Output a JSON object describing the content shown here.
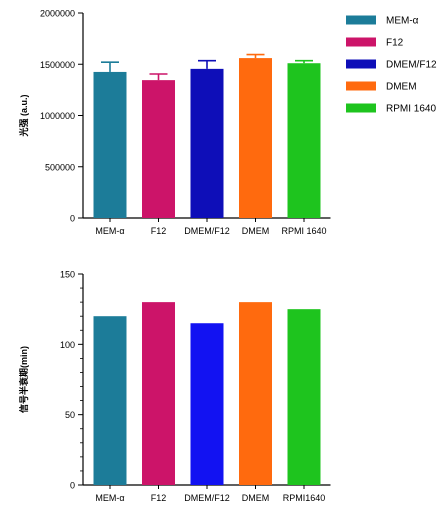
{
  "chart_data": [
    {
      "type": "bar",
      "categories": [
        "MEM-α",
        "F12",
        "DMEM/F12",
        "DMEM",
        "RPMI 1640"
      ],
      "values": [
        1425000,
        1345000,
        1455000,
        1560000,
        1510000
      ],
      "errors": [
        95000,
        60000,
        80000,
        35000,
        25000
      ],
      "colors": [
        "#1C7C99",
        "#CC1469",
        "#0E0EB8",
        "#FF6A0E",
        "#1EC41E"
      ],
      "ylabel": "光强 (a.u.)",
      "xlabel": "",
      "ylim": [
        0,
        2000000
      ],
      "yticks": [
        "0",
        "500000",
        "1000000",
        "1500000",
        "2000000"
      ],
      "legend": [
        "MEM-α",
        "F12",
        "DMEM/F12",
        "DMEM",
        "RPMI 1640"
      ],
      "legend_position": "top-right"
    },
    {
      "type": "bar",
      "categories": [
        "MEM-α",
        "F12",
        "DMEM/F12",
        "DMEM",
        "RPMI1640"
      ],
      "values": [
        120,
        130,
        115,
        130,
        125
      ],
      "colors": [
        "#1C7C99",
        "#CC1469",
        "#1212F2",
        "#FF6A0E",
        "#1EC41E"
      ],
      "ylabel": "信号半衰期(min)",
      "xlabel": "",
      "ylim": [
        0,
        150
      ],
      "yticks": [
        "0",
        "50",
        "100",
        "150"
      ]
    }
  ]
}
